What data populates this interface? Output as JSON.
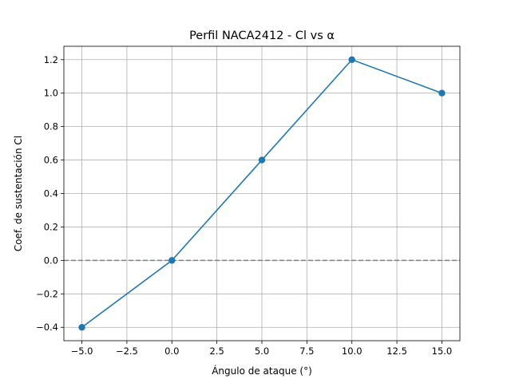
{
  "chart_data": {
    "type": "line",
    "title": "Perfil NACA2412 - Cl vs α",
    "xlabel": "Ángulo de ataque (°)",
    "ylabel": "Coef. de sustentación Cl",
    "x": [
      -5,
      0,
      5,
      10,
      15
    ],
    "series": [
      {
        "values": [
          -0.4,
          0.0,
          0.6,
          1.2,
          1.0
        ],
        "color": "#1f77b4",
        "marker": "circle"
      }
    ],
    "reference_lines": [
      {
        "orientation": "horizontal",
        "y": 0.0,
        "style": "dashed",
        "color": "#808080"
      }
    ],
    "xlim": [
      -6.0,
      16.0
    ],
    "ylim": [
      -0.48,
      1.28
    ],
    "xticks": [
      -5.0,
      -2.5,
      0.0,
      2.5,
      5.0,
      7.5,
      10.0,
      12.5,
      15.0
    ],
    "xtick_labels": [
      "−5.0",
      "−2.5",
      "0.0",
      "2.5",
      "5.0",
      "7.5",
      "10.0",
      "12.5",
      "15.0"
    ],
    "yticks": [
      -0.4,
      -0.2,
      0.0,
      0.2,
      0.4,
      0.6,
      0.8,
      1.0,
      1.2
    ],
    "ytick_labels": [
      "−0.4",
      "−0.2",
      "0.0",
      "0.2",
      "0.4",
      "0.6",
      "0.8",
      "1.0",
      "1.2"
    ],
    "grid": true,
    "legend": "none"
  }
}
